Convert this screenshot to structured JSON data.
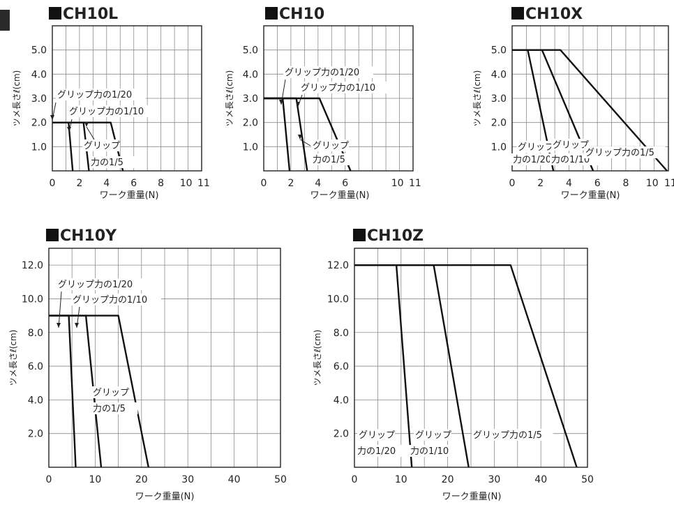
{
  "chart_data": [
    {
      "type": "line",
      "title": "CH10L",
      "xlabel": "ワーク重量(N)",
      "ylabel": "ツメ長さℓ(cm)",
      "xlim": [
        0,
        11
      ],
      "ylim": [
        0,
        6
      ],
      "x_ticks": [
        0,
        2,
        4,
        6,
        8,
        10,
        11
      ],
      "x_tick_labels": [
        "0",
        "2",
        "4",
        "6",
        "8",
        "10",
        "11"
      ],
      "y_ticks": [
        1,
        2,
        3,
        4,
        5
      ],
      "y_tick_labels": [
        "1.0",
        "2.0",
        "3.0",
        "4.0",
        "5.0"
      ],
      "series": [
        {
          "name": "グリップ力の1/20",
          "x": [
            0,
            1.2,
            1.5
          ],
          "y": [
            2.0,
            2.0,
            0
          ]
        },
        {
          "name": "グリップ力の1/10",
          "x": [
            0,
            2.3,
            2.7
          ],
          "y": [
            2.0,
            2.0,
            0
          ]
        },
        {
          "name": "グリップ力の1/5",
          "x": [
            0,
            4.3,
            5.2
          ],
          "y": [
            2.0,
            2.0,
            0
          ]
        }
      ],
      "annotations": [
        "グリップ力の1/20",
        "グリップ力の1/10",
        "グリップ",
        "力の1/5"
      ]
    },
    {
      "type": "line",
      "title": "CH10",
      "xlabel": "ワーク重量(N)",
      "ylabel": "ツメ長さℓ(cm)",
      "xlim": [
        0,
        11
      ],
      "ylim": [
        0,
        6
      ],
      "x_ticks": [
        0,
        2,
        4,
        6,
        10,
        11
      ],
      "x_tick_labels": [
        "0",
        "2",
        "4",
        "6",
        "10",
        "11"
      ],
      "y_ticks": [
        1,
        2,
        3,
        4,
        5
      ],
      "y_tick_labels": [
        "1.0",
        "2.0",
        "3.0",
        "4.0",
        "5.0"
      ],
      "series": [
        {
          "name": "グリップ力の1/20",
          "x": [
            0,
            1.4,
            1.9
          ],
          "y": [
            3.0,
            3.0,
            0
          ]
        },
        {
          "name": "グリップ力の1/10",
          "x": [
            0,
            2.4,
            3.2
          ],
          "y": [
            3.0,
            3.0,
            0
          ]
        },
        {
          "name": "グリップ力の1/5",
          "x": [
            0,
            4.1,
            6.4
          ],
          "y": [
            3.0,
            3.0,
            0
          ]
        }
      ],
      "annotations": [
        "グリップ力の1/20",
        "グリップ力の1/10",
        "グリップ",
        "力の1/5"
      ]
    },
    {
      "type": "line",
      "title": "CH10X",
      "xlabel": "ワーク重量(N)",
      "ylabel": "ツメ長さℓ(cm)",
      "xlim": [
        0,
        11
      ],
      "ylim": [
        0,
        6
      ],
      "x_ticks": [
        0,
        2,
        4,
        6,
        8,
        10,
        11
      ],
      "x_tick_labels": [
        "0",
        "2",
        "4",
        "6",
        "8",
        "10",
        "11"
      ],
      "y_ticks": [
        1,
        2,
        3,
        4,
        5
      ],
      "y_tick_labels": [
        "1.0",
        "2.0",
        "3.0",
        "4.0",
        "5.0"
      ],
      "series": [
        {
          "name": "グリップ力の1/20",
          "x": [
            0,
            1.1,
            2.9
          ],
          "y": [
            5.0,
            5.0,
            0
          ]
        },
        {
          "name": "グリップ力の1/10",
          "x": [
            0,
            2.1,
            5.7
          ],
          "y": [
            5.0,
            5.0,
            0
          ]
        },
        {
          "name": "グリップ力の1/5",
          "x": [
            0,
            3.4,
            10.9
          ],
          "y": [
            5.0,
            5.0,
            0
          ]
        }
      ],
      "annotations": [
        "グリップ",
        "力の1/20",
        "グリップ",
        "力の1/10",
        "グリップ力の1/5"
      ]
    },
    {
      "type": "line",
      "title": "CH10Y",
      "xlabel": "ワーク重量(N)",
      "ylabel": "ツメ長さℓ(cm)",
      "xlim": [
        0,
        50
      ],
      "ylim": [
        0,
        13
      ],
      "x_ticks": [
        0,
        10,
        20,
        30,
        40,
        50
      ],
      "x_tick_labels": [
        "0",
        "10",
        "20",
        "30",
        "40",
        "50"
      ],
      "y_ticks": [
        2,
        4,
        6,
        8,
        10,
        12
      ],
      "y_tick_labels": [
        "2.0",
        "4.0",
        "6.0",
        "8.0",
        "10.0",
        "12.0"
      ],
      "series": [
        {
          "name": "グリップ力の1/20",
          "x": [
            0,
            4.3,
            5.8
          ],
          "y": [
            9.0,
            9.0,
            0
          ]
        },
        {
          "name": "グリップ力の1/10",
          "x": [
            0,
            8.0,
            11.3
          ],
          "y": [
            9.0,
            9.0,
            0
          ]
        },
        {
          "name": "グリップ力の1/5",
          "x": [
            0,
            15.0,
            21.5
          ],
          "y": [
            9.0,
            9.0,
            0
          ]
        }
      ],
      "annotations": [
        "グリップ力の1/20",
        "グリップ力の1/10",
        "グリップ",
        "力の1/5"
      ]
    },
    {
      "type": "line",
      "title": "CH10Z",
      "xlabel": "ワーク重量(N)",
      "ylabel": "ツメ長さℓ(cm)",
      "xlim": [
        0,
        50
      ],
      "ylim": [
        0,
        13
      ],
      "x_ticks": [
        0,
        10,
        20,
        30,
        40,
        50
      ],
      "x_tick_labels": [
        "0",
        "10",
        "20",
        "30",
        "40",
        "50"
      ],
      "y_ticks": [
        2,
        4,
        6,
        8,
        10,
        12
      ],
      "y_tick_labels": [
        "2.0",
        "4.0",
        "6.0",
        "8.0",
        "10.0",
        "12.0"
      ],
      "series": [
        {
          "name": "グリップ力の1/20",
          "x": [
            0,
            9.0,
            12.3
          ],
          "y": [
            12.0,
            12.0,
            0
          ]
        },
        {
          "name": "グリップ力の1/10",
          "x": [
            0,
            17.0,
            24.5
          ],
          "y": [
            12.0,
            12.0,
            0
          ]
        },
        {
          "name": "グリップ力の1/5",
          "x": [
            0,
            33.5,
            47.7
          ],
          "y": [
            12.0,
            12.0,
            0
          ]
        }
      ],
      "annotations": [
        "グリップ",
        "力の1/20",
        "グリップ",
        "力の1/10",
        "グリップ力の1/5"
      ]
    }
  ]
}
